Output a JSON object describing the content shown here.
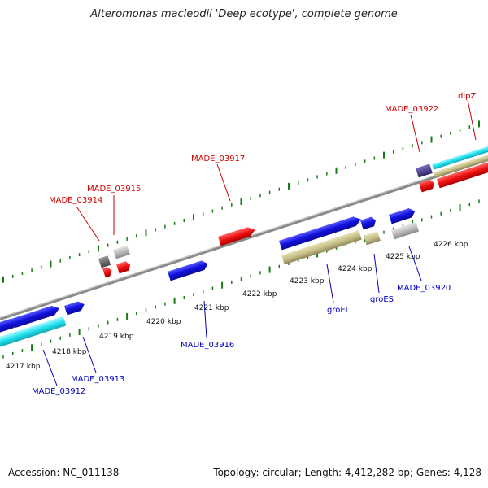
{
  "title": "Alteromonas macleodii 'Deep ecotype', complete genome",
  "footer": {
    "accession": "Accession: NC_011138",
    "summary": "Topology: circular; Length: 4,412,282 bp; Genes: 4,128"
  },
  "axis_ticks": [
    "4217 kbp",
    "4218 kbp",
    "4219 kbp",
    "4220 kbp",
    "4221 kbp",
    "4222 kbp",
    "4223 kbp",
    "4224 kbp",
    "4225 kbp",
    "4226 kbp"
  ],
  "gene_labels_top": [
    "MADE_03914",
    "MADE_03915",
    "MADE_03917",
    "MADE_03922",
    "dipZ"
  ],
  "gene_labels_bottom": [
    "MADE_03912",
    "MADE_03913",
    "MADE_03916",
    "groEL",
    "groES",
    "MADE_03920"
  ],
  "colors": {
    "cds_forward": "#1010dd",
    "cds_reverse": "#ee1111",
    "gene_cyan": "#22e0ee",
    "gene_khaki": "#c8c08a",
    "gene_grey": "#bbbbbb",
    "gene_darkgrey": "#6a6a6a",
    "gene_purple": "#4c3f8f",
    "label_top": "#cc0000",
    "label_bottom": "#0000bb",
    "tick": "#1a7a1a",
    "backbone": "#8a8a8a"
  }
}
